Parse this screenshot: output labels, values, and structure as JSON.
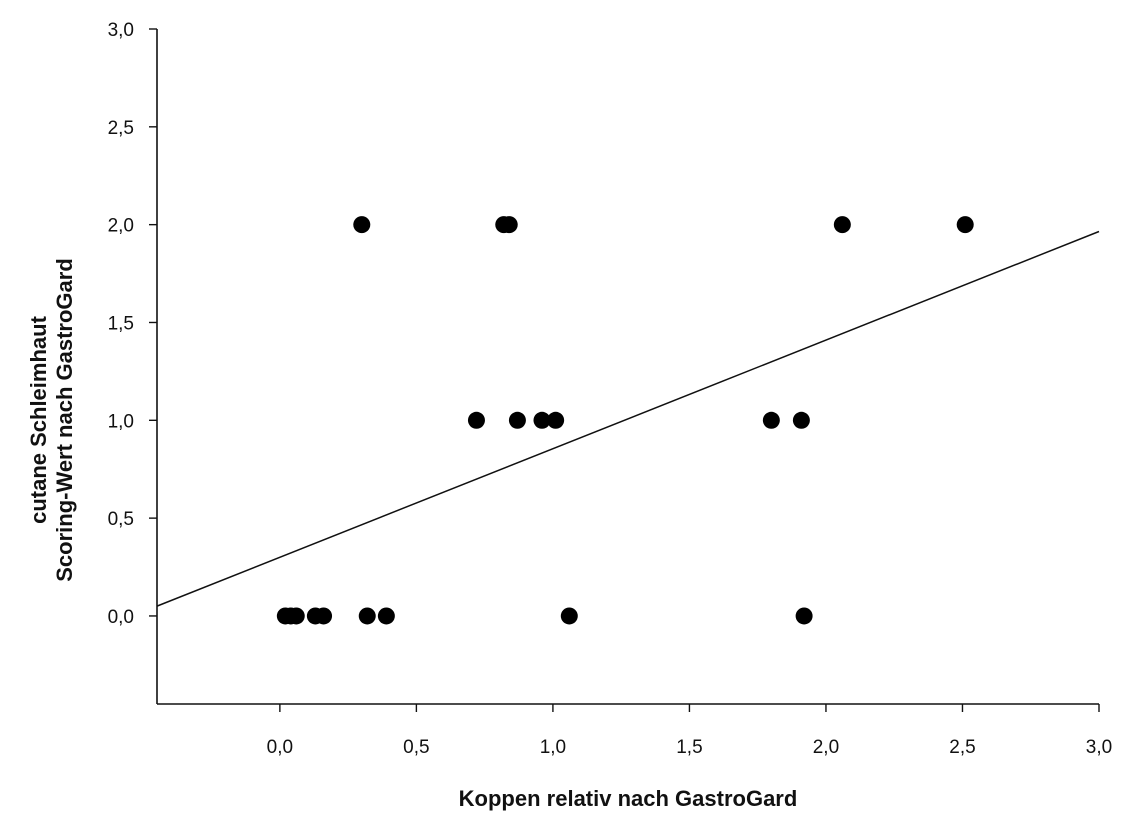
{
  "chart_data": {
    "type": "scatter",
    "title": "",
    "xlabel": "Koppen relativ nach GastroGard",
    "ylabel_lines": [
      "cutane Schleimhaut",
      "Scoring-Wert nach GastroGard"
    ],
    "xlim": [
      -0.45,
      3.0
    ],
    "ylim": [
      -0.45,
      3.0
    ],
    "x_ticks": [
      0.0,
      0.5,
      1.0,
      1.5,
      2.0,
      2.5,
      3.0
    ],
    "x_tick_labels": [
      "0,0",
      "0,5",
      "1,0",
      "1,5",
      "2,0",
      "2,5",
      "3,0"
    ],
    "y_ticks": [
      0.0,
      0.5,
      1.0,
      1.5,
      2.0,
      2.5,
      3.0
    ],
    "y_tick_labels": [
      "0,0",
      "0,5",
      "1,0",
      "1,5",
      "2,0",
      "2,5",
      "3,0"
    ],
    "grid": false,
    "points": [
      {
        "x": 0.02,
        "y": 0.0
      },
      {
        "x": 0.04,
        "y": 0.0
      },
      {
        "x": 0.06,
        "y": 0.0
      },
      {
        "x": 0.13,
        "y": 0.0
      },
      {
        "x": 0.16,
        "y": 0.0
      },
      {
        "x": 0.32,
        "y": 0.0
      },
      {
        "x": 0.39,
        "y": 0.0
      },
      {
        "x": 1.06,
        "y": 0.0
      },
      {
        "x": 1.92,
        "y": 0.0
      },
      {
        "x": 0.72,
        "y": 1.0
      },
      {
        "x": 0.87,
        "y": 1.0
      },
      {
        "x": 0.96,
        "y": 1.0
      },
      {
        "x": 1.01,
        "y": 1.0
      },
      {
        "x": 1.8,
        "y": 1.0
      },
      {
        "x": 1.91,
        "y": 1.0
      },
      {
        "x": 0.3,
        "y": 2.0
      },
      {
        "x": 0.82,
        "y": 2.0
      },
      {
        "x": 0.84,
        "y": 2.0
      },
      {
        "x": 2.06,
        "y": 2.0
      },
      {
        "x": 2.51,
        "y": 2.0
      }
    ],
    "regression_line": {
      "intercept": 0.3,
      "slope": 0.555
    }
  }
}
